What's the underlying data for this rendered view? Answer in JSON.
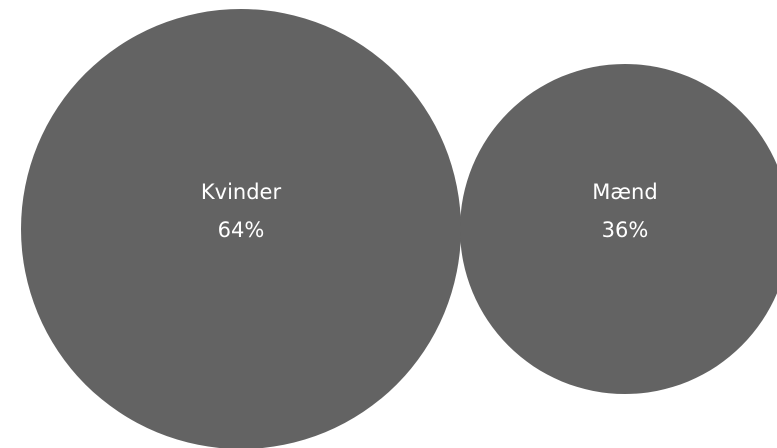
{
  "chart_data": {
    "type": "bubble",
    "colors": {
      "bubble": "#636363",
      "label": "#ffffff",
      "background": "#ffffff"
    },
    "items": [
      {
        "label": "Kvinder",
        "value": 64,
        "value_label": "64%"
      },
      {
        "label": "Mænd",
        "value": 36,
        "value_label": "36%"
      }
    ]
  }
}
